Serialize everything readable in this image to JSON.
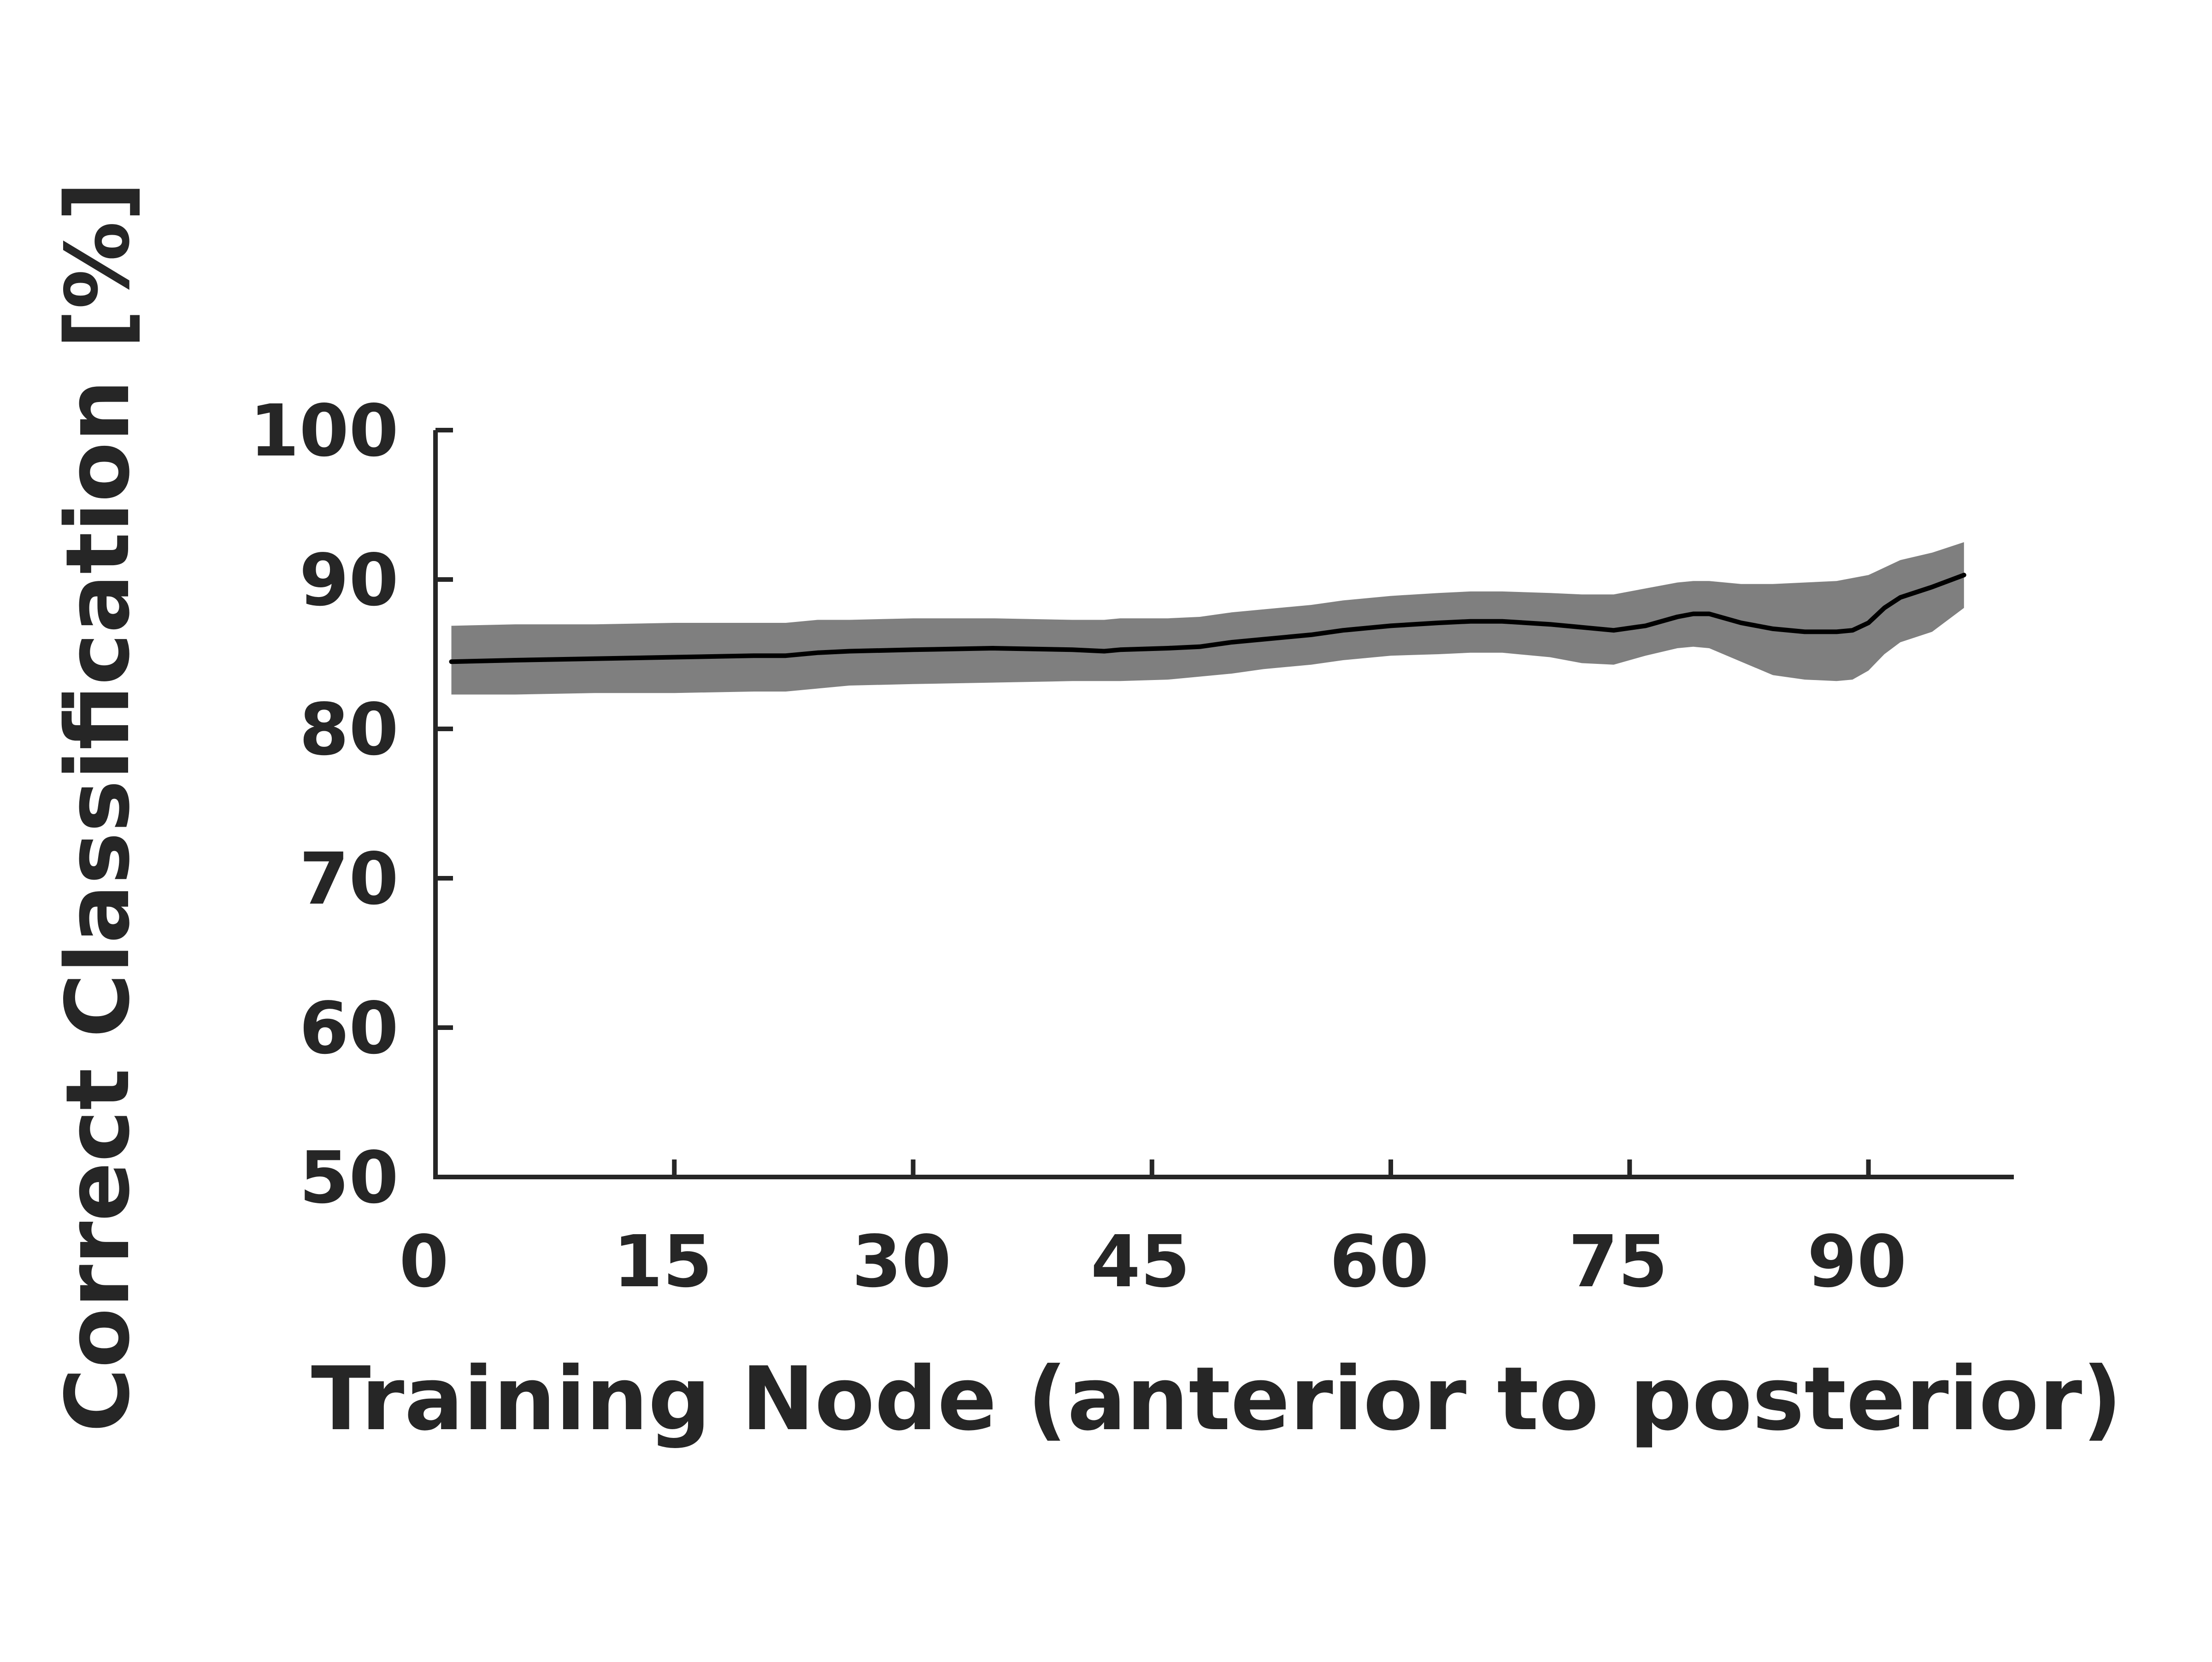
{
  "chart_data": {
    "type": "line",
    "title": "",
    "xlabel": "Training Node (anterior to posterior)",
    "ylabel": "Correct Classification [%]",
    "xlim": [
      0,
      98
    ],
    "ylim": [
      50,
      100
    ],
    "xticks": [
      0,
      15,
      30,
      45,
      60,
      75,
      90
    ],
    "yticks": [
      50,
      60,
      70,
      80,
      90,
      100
    ],
    "grid": false,
    "legend": "none",
    "series": [
      {
        "type": "line",
        "color": "#000000",
        "x": [
          1,
          5,
          10,
          15,
          20,
          22,
          24,
          26,
          30,
          35,
          40,
          42,
          43,
          46,
          48,
          50,
          52,
          55,
          57,
          60,
          63,
          65,
          67,
          70,
          72,
          74,
          76,
          78,
          79,
          80,
          82,
          84,
          86,
          88,
          89,
          90,
          91,
          92,
          94,
          96
        ],
        "y": [
          84.5,
          84.6,
          84.7,
          84.8,
          84.9,
          84.9,
          85.1,
          85.2,
          85.3,
          85.4,
          85.3,
          85.2,
          85.3,
          85.4,
          85.5,
          85.8,
          86.0,
          86.3,
          86.6,
          86.9,
          87.1,
          87.2,
          87.2,
          87.0,
          86.8,
          86.6,
          86.9,
          87.5,
          87.7,
          87.7,
          87.1,
          86.7,
          86.5,
          86.5,
          86.6,
          87.1,
          88.1,
          88.8,
          89.5,
          90.3
        ]
      },
      {
        "type": "band",
        "color": "#7f7f7f",
        "x": [
          1,
          5,
          10,
          15,
          20,
          22,
          24,
          26,
          30,
          35,
          40,
          42,
          43,
          46,
          48,
          50,
          52,
          55,
          57,
          60,
          63,
          65,
          67,
          70,
          72,
          74,
          76,
          78,
          79,
          80,
          82,
          84,
          86,
          88,
          89,
          90,
          91,
          92,
          94,
          96
        ],
        "upper": [
          86.9,
          87.0,
          87.0,
          87.1,
          87.1,
          87.1,
          87.3,
          87.3,
          87.4,
          87.4,
          87.3,
          87.3,
          87.4,
          87.4,
          87.5,
          87.8,
          88.0,
          88.3,
          88.6,
          88.9,
          89.1,
          89.2,
          89.2,
          89.1,
          89.0,
          89.0,
          89.4,
          89.8,
          89.9,
          89.9,
          89.7,
          89.7,
          89.8,
          89.9,
          90.1,
          90.3,
          90.8,
          91.3,
          91.8,
          92.5
        ],
        "lower": [
          82.3,
          82.3,
          82.4,
          82.4,
          82.5,
          82.5,
          82.7,
          82.9,
          83.0,
          83.1,
          83.2,
          83.2,
          83.2,
          83.3,
          83.5,
          83.7,
          84.0,
          84.3,
          84.6,
          84.9,
          85.0,
          85.1,
          85.1,
          84.8,
          84.4,
          84.3,
          84.9,
          85.4,
          85.5,
          85.4,
          84.5,
          83.6,
          83.3,
          83.2,
          83.3,
          83.9,
          85.0,
          85.8,
          86.5,
          88.1
        ]
      }
    ]
  }
}
